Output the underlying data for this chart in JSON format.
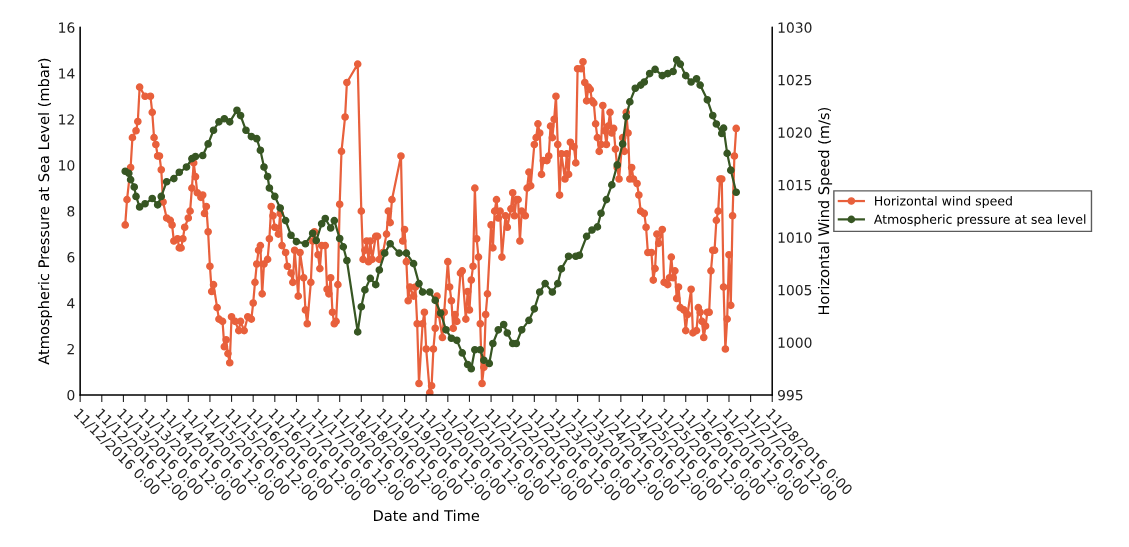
{
  "chart_data": {
    "type": "line",
    "xlabel": "Date and Time",
    "ylabel": "Atmospheric Pressure at Sea Level (mbar)",
    "y2label": "Horizontal Wind Speed (m/s)",
    "marker": "circle",
    "line_style": "solid",
    "legend": "right",
    "grid": false,
    "xlim": [
      "2016-11-12T00:00",
      "2016-11-28T00:00"
    ],
    "xticks": [
      {
        "value": "2016-11-12T00:00",
        "label": "11/12/2016 0:00"
      },
      {
        "value": "2016-11-12T12:00",
        "label": "11/12/2016 12:00"
      },
      {
        "value": "2016-11-13T00:00",
        "label": "11/13/2016 0:00"
      },
      {
        "value": "2016-11-13T12:00",
        "label": "11/13/2016 12:00"
      },
      {
        "value": "2016-11-14T00:00",
        "label": "11/14/2016 0:00"
      },
      {
        "value": "2016-11-14T12:00",
        "label": "11/14/2016 12:00"
      },
      {
        "value": "2016-11-15T00:00",
        "label": "11/15/2016 0:00"
      },
      {
        "value": "2016-11-15T12:00",
        "label": "11/15/2016 12:00"
      },
      {
        "value": "2016-11-16T00:00",
        "label": "11/16/2016 0:00"
      },
      {
        "value": "2016-11-16T12:00",
        "label": "11/16/2016 12:00"
      },
      {
        "value": "2016-11-17T00:00",
        "label": "11/17/2016 0:00"
      },
      {
        "value": "2016-11-17T12:00",
        "label": "11/17/2016 12:00"
      },
      {
        "value": "2016-11-18T00:00",
        "label": "11/18/2016 0:00"
      },
      {
        "value": "2016-11-18T12:00",
        "label": "11/18/2016 12:00"
      },
      {
        "value": "2016-11-19T00:00",
        "label": "11/19/2016 0:00"
      },
      {
        "value": "2016-11-19T12:00",
        "label": "11/19/2016 12:00"
      },
      {
        "value": "2016-11-20T00:00",
        "label": "11/20/2016 0:00"
      },
      {
        "value": "2016-11-20T12:00",
        "label": "11/20/2016 12:00"
      },
      {
        "value": "2016-11-21T00:00",
        "label": "11/21/2016 0:00"
      },
      {
        "value": "2016-11-21T12:00",
        "label": "11/21/2016 12:00"
      },
      {
        "value": "2016-11-22T00:00",
        "label": "11/22/2016 0:00"
      },
      {
        "value": "2016-11-22T12:00",
        "label": "11/22/2016 12:00"
      },
      {
        "value": "2016-11-23T00:00",
        "label": "11/23/2016 0:00"
      },
      {
        "value": "2016-11-23T12:00",
        "label": "11/23/2016 12:00"
      },
      {
        "value": "2016-11-24T00:00",
        "label": "11/24/2016 0:00"
      },
      {
        "value": "2016-11-24T12:00",
        "label": "11/24/2016 12:00"
      },
      {
        "value": "2016-11-25T00:00",
        "label": "11/25/2016 0:00"
      },
      {
        "value": "2016-11-25T12:00",
        "label": "11/25/2016 12:00"
      },
      {
        "value": "2016-11-26T00:00",
        "label": "11/26/2016 0:00"
      },
      {
        "value": "2016-11-26T12:00",
        "label": "11/26/2016 12:00"
      },
      {
        "value": "2016-11-27T00:00",
        "label": "11/27/2016 0:00"
      },
      {
        "value": "2016-11-27T12:00",
        "label": "11/27/2016 12:00"
      },
      {
        "value": "2016-11-28T00:00",
        "label": "11/28/2016 0:00"
      }
    ],
    "ylim": [
      0,
      16
    ],
    "yticks": [
      0,
      2,
      4,
      6,
      8,
      10,
      12,
      14,
      16
    ],
    "y2lim": [
      995,
      1030
    ],
    "y2ticks": [
      995,
      1000,
      1005,
      1010,
      1015,
      1020,
      1025,
      1030
    ],
    "series": [
      {
        "name": "Horizontal wind speed",
        "color": "#e8603c",
        "x": [
          "2016-11-13T01:00",
          "2016-11-13T02:00",
          "2016-11-13T04:00",
          "2016-11-13T05:00",
          "2016-11-13T07:00",
          "2016-11-13T08:00",
          "2016-11-13T09:00",
          "2016-11-13T12:00",
          "2016-11-13T15:00",
          "2016-11-13T16:00",
          "2016-11-13T17:00",
          "2016-11-13T18:00",
          "2016-11-13T19:00",
          "2016-11-13T20:00",
          "2016-11-13T21:00",
          "2016-11-13T22:00",
          "2016-11-14T00:00",
          "2016-11-14T02:00",
          "2016-11-14T03:00",
          "2016-11-14T04:00",
          "2016-11-14T06:00",
          "2016-11-14T07:00",
          "2016-11-14T08:00",
          "2016-11-14T09:00",
          "2016-11-14T10:00",
          "2016-11-14T12:00",
          "2016-11-14T13:00",
          "2016-11-14T14:00",
          "2016-11-14T15:00",
          "2016-11-14T16:00",
          "2016-11-14T17:00",
          "2016-11-14T19:00",
          "2016-11-14T20:00",
          "2016-11-14T21:00",
          "2016-11-14T22:00",
          "2016-11-14T23:00",
          "2016-11-15T00:00",
          "2016-11-15T01:00",
          "2016-11-15T02:00",
          "2016-11-15T04:00",
          "2016-11-15T05:00",
          "2016-11-15T07:00",
          "2016-11-15T08:00",
          "2016-11-15T09:00",
          "2016-11-15T10:00",
          "2016-11-15T11:00",
          "2016-11-15T12:00",
          "2016-11-15T14:00",
          "2016-11-15T16:00",
          "2016-11-15T17:00",
          "2016-11-15T19:00",
          "2016-11-15T21:00",
          "2016-11-15T23:00",
          "2016-11-16T00:00",
          "2016-11-16T01:00",
          "2016-11-16T02:00",
          "2016-11-16T03:00",
          "2016-11-16T04:00",
          "2016-11-16T05:00",
          "2016-11-16T06:00",
          "2016-11-16T08:00",
          "2016-11-16T09:00",
          "2016-11-16T10:00",
          "2016-11-16T11:00",
          "2016-11-16T12:00",
          "2016-11-16T14:00",
          "2016-11-16T15:00",
          "2016-11-16T16:00",
          "2016-11-16T18:00",
          "2016-11-16T19:00",
          "2016-11-16T21:00",
          "2016-11-16T22:00",
          "2016-11-16T23:00",
          "2016-11-17T01:00",
          "2016-11-17T02:00",
          "2016-11-17T04:00",
          "2016-11-17T05:00",
          "2016-11-17T06:00",
          "2016-11-17T08:00",
          "2016-11-17T09:00",
          "2016-11-17T10:00",
          "2016-11-17T12:00",
          "2016-11-17T13:00",
          "2016-11-17T14:00",
          "2016-11-17T16:00",
          "2016-11-17T17:00",
          "2016-11-17T18:00",
          "2016-11-17T19:00",
          "2016-11-17T20:00",
          "2016-11-17T21:00",
          "2016-11-17T22:00",
          "2016-11-17T23:00",
          "2016-11-18T00:00",
          "2016-11-18T01:00",
          "2016-11-18T03:00",
          "2016-11-18T04:00",
          "2016-11-18T10:00",
          "2016-11-18T12:00",
          "2016-11-18T13:00",
          "2016-11-18T14:00",
          "2016-11-18T15:00",
          "2016-11-18T16:00",
          "2016-11-18T17:00",
          "2016-11-18T18:00",
          "2016-11-18T20:00",
          "2016-11-18T21:00",
          "2016-11-18T22:00",
          "2016-11-19T00:00",
          "2016-11-19T02:00",
          "2016-11-19T03:00",
          "2016-11-19T04:00",
          "2016-11-19T05:00",
          "2016-11-19T10:00",
          "2016-11-19T11:00",
          "2016-11-19T12:00",
          "2016-11-19T13:00",
          "2016-11-19T14:00",
          "2016-11-19T15:00",
          "2016-11-19T17:00",
          "2016-11-19T18:00",
          "2016-11-19T19:00",
          "2016-11-19T20:00",
          "2016-11-19T22:00",
          "2016-11-19T23:00",
          "2016-11-20T00:00",
          "2016-11-20T02:00",
          "2016-11-20T03:00",
          "2016-11-20T04:00",
          "2016-11-20T05:00",
          "2016-11-20T06:00",
          "2016-11-20T07:00",
          "2016-11-20T09:00",
          "2016-11-20T10:00",
          "2016-11-20T12:00",
          "2016-11-20T13:00",
          "2016-11-20T14:00",
          "2016-11-20T15:00",
          "2016-11-20T16:00",
          "2016-11-20T17:00",
          "2016-11-20T19:00",
          "2016-11-20T20:00",
          "2016-11-20T22:00",
          "2016-11-20T23:00",
          "2016-11-21T00:00",
          "2016-11-21T01:00",
          "2016-11-21T02:00",
          "2016-11-21T03:00",
          "2016-11-21T04:00",
          "2016-11-21T05:00",
          "2016-11-21T06:00",
          "2016-11-21T07:00",
          "2016-11-21T08:00",
          "2016-11-21T09:00",
          "2016-11-21T10:00",
          "2016-11-21T12:00",
          "2016-11-21T13:00",
          "2016-11-21T14:00",
          "2016-11-21T15:00",
          "2016-11-21T16:00",
          "2016-11-21T17:00",
          "2016-11-21T18:00",
          "2016-11-21T20:00",
          "2016-11-21T21:00",
          "2016-11-21T23:00",
          "2016-11-22T00:00",
          "2016-11-22T01:00",
          "2016-11-22T02:00",
          "2016-11-22T03:00",
          "2016-11-22T04:00",
          "2016-11-22T05:00",
          "2016-11-22T07:00",
          "2016-11-22T08:00",
          "2016-11-22T09:00",
          "2016-11-22T10:00",
          "2016-11-22T12:00",
          "2016-11-22T13:00",
          "2016-11-22T14:00",
          "2016-11-22T15:00",
          "2016-11-22T16:00",
          "2016-11-22T17:00",
          "2016-11-22T19:00",
          "2016-11-22T20:00",
          "2016-11-22T21:00",
          "2016-11-22T22:00",
          "2016-11-22T23:00",
          "2016-11-23T00:00",
          "2016-11-23T01:00",
          "2016-11-23T02:00",
          "2016-11-23T03:00",
          "2016-11-23T05:00",
          "2016-11-23T06:00",
          "2016-11-23T07:00",
          "2016-11-23T08:00",
          "2016-11-23T10:00",
          "2016-11-23T11:00",
          "2016-11-23T12:00",
          "2016-11-23T14:00",
          "2016-11-23T15:00",
          "2016-11-23T16:00",
          "2016-11-23T17:00",
          "2016-11-23T18:00",
          "2016-11-23T19:00",
          "2016-11-23T20:00",
          "2016-11-23T21:00",
          "2016-11-23T22:00",
          "2016-11-23T23:00",
          "2016-11-24T00:00",
          "2016-11-24T01:00",
          "2016-11-24T02:00",
          "2016-11-24T03:00",
          "2016-11-24T04:00",
          "2016-11-24T05:00",
          "2016-11-24T06:00",
          "2016-11-24T07:00",
          "2016-11-24T08:00",
          "2016-11-24T09:00",
          "2016-11-24T10:00",
          "2016-11-24T11:00",
          "2016-11-24T13:00",
          "2016-11-24T14:00",
          "2016-11-24T15:00",
          "2016-11-24T16:00",
          "2016-11-24T17:00",
          "2016-11-24T18:00",
          "2016-11-24T19:00",
          "2016-11-24T21:00",
          "2016-11-24T22:00",
          "2016-11-24T23:00",
          "2016-11-25T01:00",
          "2016-11-25T02:00",
          "2016-11-25T03:00",
          "2016-11-25T05:00",
          "2016-11-25T06:00",
          "2016-11-25T07:00",
          "2016-11-25T08:00",
          "2016-11-25T09:00",
          "2016-11-25T11:00",
          "2016-11-25T12:00",
          "2016-11-25T14:00",
          "2016-11-25T15:00",
          "2016-11-25T16:00",
          "2016-11-25T17:00",
          "2016-11-25T18:00",
          "2016-11-25T19:00",
          "2016-11-25T20:00",
          "2016-11-25T21:00",
          "2016-11-25T23:00",
          "2016-11-26T00:00",
          "2016-11-26T01:00",
          "2016-11-26T03:00",
          "2016-11-26T04:00",
          "2016-11-26T06:00",
          "2016-11-26T07:00",
          "2016-11-26T08:00",
          "2016-11-26T09:00",
          "2016-11-26T10:00",
          "2016-11-26T11:00",
          "2016-11-26T12:00",
          "2016-11-26T13:00",
          "2016-11-26T14:00",
          "2016-11-26T15:00",
          "2016-11-26T16:00",
          "2016-11-26T17:00",
          "2016-11-26T18:00",
          "2016-11-26T19:00",
          "2016-11-26T20:00",
          "2016-11-26T21:00",
          "2016-11-26T22:00",
          "2016-11-26T23:00",
          "2016-11-27T00:00",
          "2016-11-27T01:00",
          "2016-11-27T02:00",
          "2016-11-27T03:00",
          "2016-11-27T04:00"
        ],
        "values": [
          7.4,
          8.5,
          9.9,
          11.2,
          11.5,
          11.9,
          13.4,
          13.0,
          13.0,
          12.3,
          11.2,
          10.9,
          10.4,
          10.4,
          9.8,
          8.4,
          7.7,
          7.6,
          7.4,
          6.7,
          6.8,
          6.4,
          6.4,
          6.8,
          7.3,
          7.7,
          8.0,
          9.0,
          10.1,
          9.5,
          8.8,
          8.6,
          8.7,
          7.9,
          8.2,
          7.1,
          5.6,
          4.5,
          4.8,
          3.8,
          3.3,
          3.2,
          2.1,
          2.4,
          1.8,
          1.4,
          3.4,
          3.2,
          2.8,
          3.2,
          2.8,
          3.4,
          3.3,
          4.0,
          4.9,
          5.7,
          6.3,
          6.5,
          4.4,
          5.7,
          5.9,
          6.8,
          8.2,
          7.8,
          7.3,
          7.0,
          7.9,
          6.5,
          6.2,
          5.6,
          5.3,
          4.9,
          6.3,
          4.3,
          6.2,
          5.1,
          3.7,
          3.1,
          4.9,
          6.7,
          7.1,
          6.1,
          5.5,
          6.5,
          6.5,
          4.6,
          4.4,
          5.1,
          3.6,
          3.1,
          3.2,
          4.8,
          8.3,
          10.6,
          12.1,
          13.6,
          14.4,
          8.0,
          5.9,
          6.3,
          6.7,
          5.8,
          6.7,
          5.9,
          6.9,
          6.9,
          5.9,
          6.2,
          7.0,
          8.0,
          7.5,
          8.5,
          10.4,
          6.7,
          7.2,
          5.8,
          4.1,
          4.7,
          4.3,
          4.7,
          3.1,
          0.5,
          3.1,
          3.6,
          2.0,
          0.1,
          0.4,
          2.0,
          2.9,
          4.3,
          3.5,
          2.5,
          3.6,
          5.8,
          4.7,
          4.1,
          2.9,
          3.5,
          3.2,
          5.3,
          5.4,
          3.3,
          4.5,
          3.7,
          5.0,
          5.6,
          9.0,
          6.8,
          6.0,
          3.1,
          0.5,
          1.2,
          3.5,
          4.4,
          7.4,
          6.4,
          8.0,
          8.5,
          7.7,
          8.0,
          6.0,
          7.8,
          7.3,
          8.1,
          8.8,
          7.8,
          8.5,
          8.5,
          6.7,
          8.0,
          7.8,
          9.0,
          9.7,
          9.1,
          10.9,
          11.2,
          11.8,
          11.4,
          9.6,
          10.2,
          10.2,
          10.4,
          11.7,
          11.2,
          12.0,
          13.0,
          10.9,
          8.7,
          10.5,
          9.4,
          10.5,
          9.6,
          11.0,
          10.8,
          10.1,
          14.2,
          14.2,
          14.5,
          13.6,
          12.8,
          13.4,
          13.3,
          12.8,
          12.7,
          11.8,
          11.2,
          10.6,
          10.9,
          12.6,
          11.5,
          10.9,
          11.7,
          12.3,
          11.4,
          11.6,
          10.7,
          9.9,
          9.4,
          11.2,
          10.6,
          12.3,
          11.4,
          9.4,
          9.9,
          9.4,
          9.2,
          8.7,
          8.0,
          7.9,
          7.3,
          6.2,
          6.2,
          5.0,
          5.5,
          7.0,
          6.6,
          7.2,
          4.9,
          4.8,
          5.1,
          6.0,
          5.1,
          5.4,
          4.2,
          4.7,
          3.8,
          3.7,
          2.8,
          3.5,
          4.6,
          2.7,
          2.8,
          3.8,
          3.6,
          3.2,
          2.5,
          3.0,
          3.6,
          3.6,
          5.4,
          6.3,
          6.3,
          7.6,
          8.0,
          9.4,
          9.4,
          4.7,
          2.0,
          3.3,
          6.1,
          3.9,
          7.8,
          10.4,
          11.6
        ]
      },
      {
        "name": "Atmospheric pressure at sea level",
        "color": "#375623",
        "axis": "y2",
        "x": [
          "2016-11-13T01:00",
          "2016-11-13T03:00",
          "2016-11-13T04:00",
          "2016-11-13T06:00",
          "2016-11-13T07:00",
          "2016-11-13T09:00",
          "2016-11-13T12:00",
          "2016-11-13T16:00",
          "2016-11-13T19:00",
          "2016-11-13T21:00",
          "2016-11-14T00:00",
          "2016-11-14T04:00",
          "2016-11-14T07:00",
          "2016-11-14T11:00",
          "2016-11-14T14:00",
          "2016-11-14T16:00",
          "2016-11-14T20:00",
          "2016-11-14T23:00",
          "2016-11-15T02:00",
          "2016-11-15T05:00",
          "2016-11-15T08:00",
          "2016-11-15T11:00",
          "2016-11-15T15:00",
          "2016-11-15T17:00",
          "2016-11-15T20:00",
          "2016-11-15T23:00",
          "2016-11-16T02:00",
          "2016-11-16T04:00",
          "2016-11-16T06:00",
          "2016-11-16T08:00",
          "2016-11-16T09:00",
          "2016-11-16T12:00",
          "2016-11-16T15:00",
          "2016-11-16T18:00",
          "2016-11-16T21:00",
          "2016-11-17T00:00",
          "2016-11-17T05:00",
          "2016-11-17T09:00",
          "2016-11-17T11:00",
          "2016-11-17T14:00",
          "2016-11-17T16:00",
          "2016-11-17T19:00",
          "2016-11-17T21:00",
          "2016-11-18T00:00",
          "2016-11-18T02:00",
          "2016-11-18T04:00",
          "2016-11-18T10:00",
          "2016-11-18T12:00",
          "2016-11-18T14:00",
          "2016-11-18T17:00",
          "2016-11-18T20:00",
          "2016-11-18T22:00",
          "2016-11-19T01:00",
          "2016-11-19T04:00",
          "2016-11-19T09:00",
          "2016-11-19T13:00",
          "2016-11-19T17:00",
          "2016-11-19T20:00",
          "2016-11-19T22:00",
          "2016-11-20T02:00",
          "2016-11-20T05:00",
          "2016-11-20T08:00",
          "2016-11-20T11:00",
          "2016-11-20T14:00",
          "2016-11-20T17:00",
          "2016-11-20T20:00",
          "2016-11-20T23:00",
          "2016-11-21T01:00",
          "2016-11-21T03:00",
          "2016-11-21T06:00",
          "2016-11-21T08:00",
          "2016-11-21T11:00",
          "2016-11-21T13:00",
          "2016-11-21T16:00",
          "2016-11-21T19:00",
          "2016-11-21T21:00",
          "2016-11-22T00:00",
          "2016-11-22T02:00",
          "2016-11-22T05:00",
          "2016-11-22T09:00",
          "2016-11-22T12:00",
          "2016-11-22T15:00",
          "2016-11-22T18:00",
          "2016-11-22T22:00",
          "2016-11-23T01:00",
          "2016-11-23T03:00",
          "2016-11-23T07:00",
          "2016-11-23T11:00",
          "2016-11-23T13:00",
          "2016-11-23T17:00",
          "2016-11-23T20:00",
          "2016-11-23T23:00",
          "2016-11-24T01:00",
          "2016-11-24T04:00",
          "2016-11-24T07:00",
          "2016-11-24T10:00",
          "2016-11-24T13:00",
          "2016-11-24T15:00",
          "2016-11-24T17:00",
          "2016-11-24T20:00",
          "2016-11-24T23:00",
          "2016-11-25T01:00",
          "2016-11-25T04:00",
          "2016-11-25T07:00",
          "2016-11-25T11:00",
          "2016-11-25T14:00",
          "2016-11-25T17:00",
          "2016-11-25T19:00",
          "2016-11-25T21:00",
          "2016-11-26T00:00",
          "2016-11-26T03:00",
          "2016-11-26T06:00",
          "2016-11-26T08:00",
          "2016-11-26T12:00",
          "2016-11-26T15:00",
          "2016-11-26T17:00",
          "2016-11-26T20:00",
          "2016-11-26T21:00",
          "2016-11-26T23:00",
          "2016-11-27T01:00",
          "2016-11-27T04:00"
        ],
        "values": [
          1016.3,
          1016.1,
          1015.5,
          1014.8,
          1013.9,
          1012.9,
          1013.2,
          1013.7,
          1013.1,
          1013.9,
          1015.3,
          1015.6,
          1016.2,
          1016.7,
          1017.5,
          1017.7,
          1017.8,
          1018.9,
          1020.2,
          1021.0,
          1021.3,
          1021.0,
          1022.1,
          1021.6,
          1020.2,
          1019.6,
          1019.4,
          1018.3,
          1016.7,
          1015.8,
          1014.7,
          1013.9,
          1012.8,
          1011.6,
          1010.2,
          1009.6,
          1009.4,
          1010.4,
          1009.7,
          1011.3,
          1011.8,
          1010.9,
          1011.6,
          1009.9,
          1009.1,
          1007.8,
          1001.0,
          1003.4,
          1005.0,
          1006.1,
          1005.5,
          1006.9,
          1008.5,
          1009.4,
          1008.5,
          1008.5,
          1007.5,
          1005.6,
          1004.8,
          1004.8,
          1004.0,
          1002.8,
          1001.2,
          1000.4,
          1000.2,
          999.0,
          997.9,
          997.5,
          999.3,
          999.3,
          998.3,
          998.0,
          999.9,
          1001.2,
          1001.7,
          1000.9,
          999.9,
          999.9,
          1001.2,
          1002.1,
          1003.2,
          1004.8,
          1005.6,
          1004.8,
          1005.6,
          1007.0,
          1008.2,
          1008.2,
          1008.3,
          1010.1,
          1010.7,
          1011.0,
          1012.3,
          1013.6,
          1015.0,
          1016.9,
          1018.9,
          1021.5,
          1022.9,
          1024.2,
          1024.5,
          1024.8,
          1025.6,
          1026.0,
          1025.4,
          1025.6,
          1025.8,
          1026.9,
          1026.5,
          1025.4,
          1024.8,
          1025.1,
          1024.5,
          1023.1,
          1021.6,
          1020.8,
          1019.9,
          1020.4,
          1018.0,
          1016.4,
          1014.3
        ]
      }
    ]
  }
}
